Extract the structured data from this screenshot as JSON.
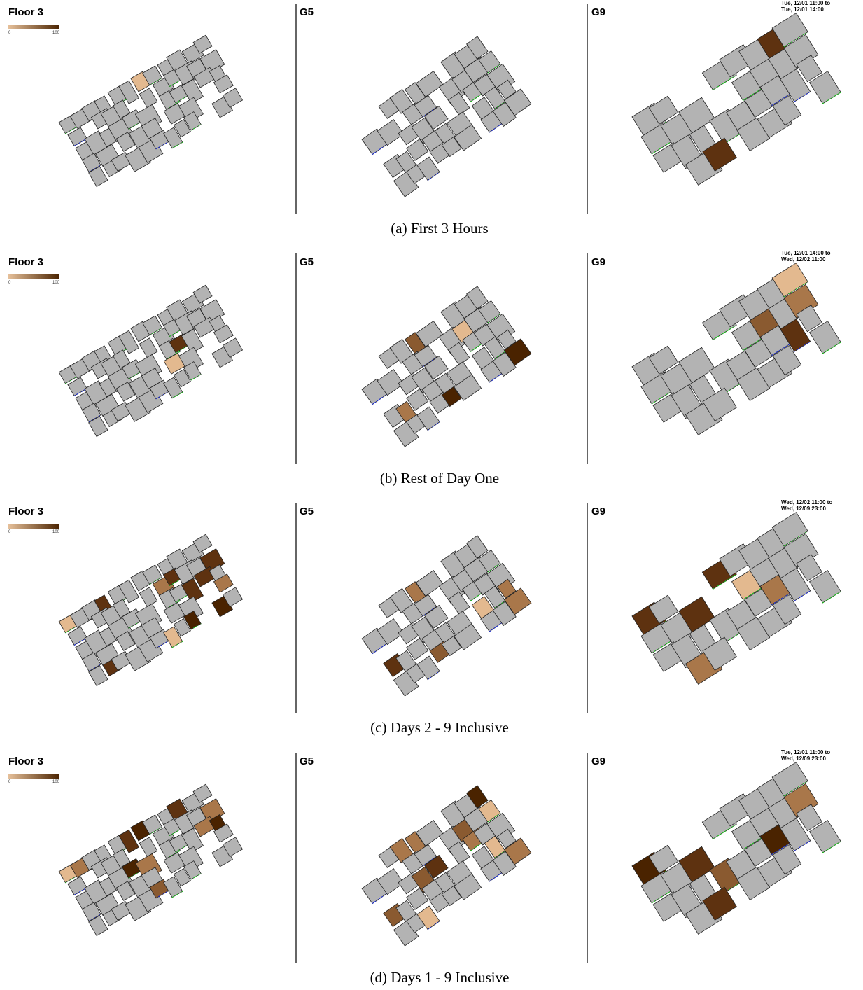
{
  "rows": [
    {
      "panels": [
        {
          "title": "Floor 3"
        },
        {
          "title": "G5"
        },
        {
          "title": "G9"
        }
      ],
      "legend": {
        "min": "0",
        "max": "100"
      },
      "time_range": [
        "Tue, 12/01 11:00 to",
        "Tue, 12/01 14:00"
      ],
      "caption": "(a) First 3 Hours"
    },
    {
      "panels": [
        {
          "title": "Floor 3"
        },
        {
          "title": "G5"
        },
        {
          "title": "G9"
        }
      ],
      "legend": {
        "min": "0",
        "max": "100"
      },
      "time_range": [
        "Tue, 12/01 14:00 to",
        "Wed, 12/02 11:00"
      ],
      "caption": "(b) Rest of Day One"
    },
    {
      "panels": [
        {
          "title": "Floor 3"
        },
        {
          "title": "G5"
        },
        {
          "title": "G9"
        }
      ],
      "legend": {
        "min": "0",
        "max": "100"
      },
      "time_range": [
        "Wed, 12/02 11:00 to",
        "Wed, 12/09 23:00"
      ],
      "caption": "(c) Days 2 - 9 Inclusive"
    },
    {
      "panels": [
        {
          "title": "Floor 3"
        },
        {
          "title": "G5"
        },
        {
          "title": "G9"
        }
      ],
      "legend": {
        "min": "0",
        "max": "100"
      },
      "time_range": [
        "Tue, 12/01 11:00 to",
        "Wed, 12/09 23:00"
      ],
      "caption": "(d) Days 1 - 9 Inclusive"
    }
  ]
}
